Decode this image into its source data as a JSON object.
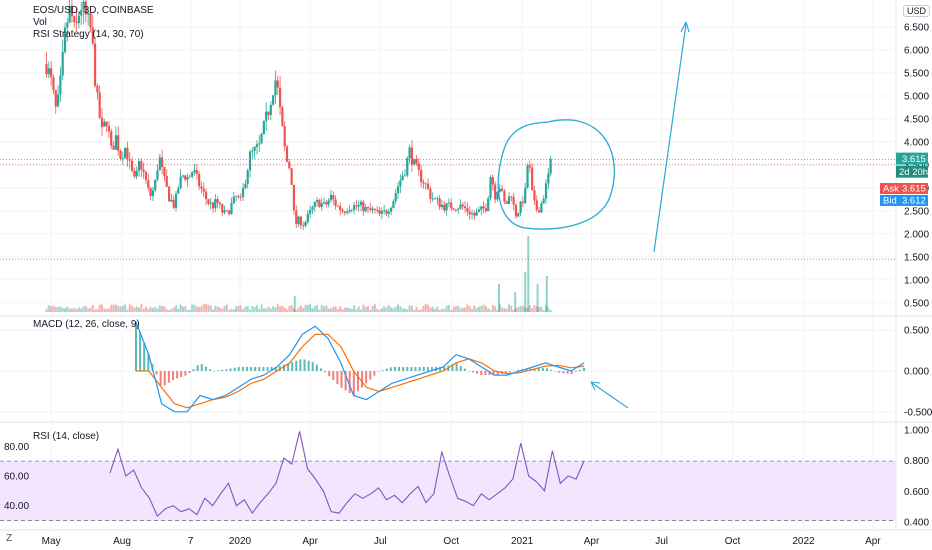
{
  "header": {
    "symbol": "EOS/USD, 3D, COINBASE",
    "vol_label": "Vol",
    "strategy_label": "RSI Strategy (14, 30, 70)",
    "currency_button": "USD"
  },
  "panes": {
    "macd_label": "MACD (12, 26, close, 9)",
    "rsi_label": "RSI (14, close)",
    "z_button": "Z"
  },
  "price_tags": {
    "last": "3.615",
    "countdown": "2d 20h",
    "ask_label": "Ask",
    "ask": "3.615",
    "bid_label": "Bid",
    "bid": "3.612"
  },
  "colors": {
    "up": "#26a69a",
    "down": "#ef5350",
    "macd_line": "#2196f3",
    "signal_line": "#ff6d00",
    "rsi_line": "#7e57c2",
    "annotation": "#29a9d8",
    "rsi_band": "#f3e5fd"
  },
  "chart_data": [
    {
      "type": "candlestick",
      "title": "EOS/USD, 3D, COINBASE",
      "x_ticks": [
        "May",
        "Aug",
        "7",
        "2020",
        "Apr",
        "Jul",
        "Oct",
        "2021",
        "Apr",
        "Jul",
        "Oct",
        "2022",
        "Apr"
      ],
      "y_ticks": [
        "6.500",
        "6.000",
        "5.500",
        "5.000",
        "4.500",
        "4.000",
        "3.500",
        "3.000",
        "2.500",
        "2.000",
        "1.500",
        "1.000",
        "0.500"
      ],
      "ylim": [
        0.3,
        7.0
      ],
      "reference_lines": [
        3.615,
        3.5,
        1.45
      ],
      "close_path": [
        [
          "2019-04-25",
          5.7
        ],
        [
          "2019-05-01",
          5.3
        ],
        [
          "2019-05-08",
          4.6
        ],
        [
          "2019-05-14",
          5.4
        ],
        [
          "2019-05-20",
          6.5
        ],
        [
          "2019-05-26",
          6.9
        ],
        [
          "2019-06-01",
          6.3
        ],
        [
          "2019-06-08",
          7.0
        ],
        [
          "2019-06-15",
          6.7
        ],
        [
          "2019-06-22",
          6.4
        ],
        [
          "2019-06-29",
          5.0
        ],
        [
          "2019-07-06",
          4.2
        ],
        [
          "2019-07-12",
          4.5
        ],
        [
          "2019-07-18",
          3.8
        ],
        [
          "2019-07-24",
          4.1
        ],
        [
          "2019-07-30",
          3.7
        ],
        [
          "2019-08-06",
          3.9
        ],
        [
          "2019-08-12",
          3.4
        ],
        [
          "2019-08-18",
          3.1
        ],
        [
          "2019-08-24",
          3.6
        ],
        [
          "2019-08-31",
          3.2
        ],
        [
          "2019-09-06",
          2.8
        ],
        [
          "2019-09-12",
          3.0
        ],
        [
          "2019-09-18",
          3.7
        ],
        [
          "2019-09-24",
          3.2
        ],
        [
          "2019-10-01",
          2.8
        ],
        [
          "2019-10-08",
          2.6
        ],
        [
          "2019-10-14",
          3.1
        ],
        [
          "2019-10-20",
          3.3
        ],
        [
          "2019-10-26",
          3.2
        ],
        [
          "2019-11-01",
          3.4
        ],
        [
          "2019-11-08",
          3.1
        ],
        [
          "2019-11-14",
          2.9
        ],
        [
          "2019-11-20",
          2.7
        ],
        [
          "2019-11-26",
          2.6
        ],
        [
          "2019-12-02",
          2.7
        ],
        [
          "2019-12-08",
          2.5
        ],
        [
          "2019-12-14",
          2.4
        ],
        [
          "2019-12-20",
          2.6
        ],
        [
          "2019-12-27",
          2.8
        ],
        [
          "2020-01-02",
          2.7
        ],
        [
          "2020-01-08",
          3.2
        ],
        [
          "2020-01-14",
          3.7
        ],
        [
          "2020-01-20",
          3.8
        ],
        [
          "2020-01-26",
          3.9
        ],
        [
          "2020-02-01",
          4.3
        ],
        [
          "2020-02-07",
          4.7
        ],
        [
          "2020-02-13",
          5.2
        ],
        [
          "2020-02-17",
          5.4
        ],
        [
          "2020-02-23",
          4.5
        ],
        [
          "2020-03-01",
          3.6
        ],
        [
          "2020-03-07",
          3.4
        ],
        [
          "2020-03-12",
          2.2
        ],
        [
          "2020-03-18",
          2.3
        ],
        [
          "2020-03-24",
          2.2
        ],
        [
          "2020-03-30",
          2.4
        ],
        [
          "2020-04-06",
          2.6
        ],
        [
          "2020-04-12",
          2.7
        ],
        [
          "2020-04-20",
          2.6
        ],
        [
          "2020-04-28",
          2.8
        ],
        [
          "2020-05-06",
          2.6
        ],
        [
          "2020-05-14",
          2.5
        ],
        [
          "2020-05-22",
          2.6
        ],
        [
          "2020-05-30",
          2.6
        ],
        [
          "2020-06-07",
          2.6
        ],
        [
          "2020-06-15",
          2.5
        ],
        [
          "2020-06-23",
          2.5
        ],
        [
          "2020-07-01",
          2.4
        ],
        [
          "2020-07-09",
          2.5
        ],
        [
          "2020-07-17",
          2.7
        ],
        [
          "2020-07-25",
          3.1
        ],
        [
          "2020-08-02",
          3.4
        ],
        [
          "2020-08-08",
          3.8
        ],
        [
          "2020-08-14",
          3.5
        ],
        [
          "2020-08-20",
          3.3
        ],
        [
          "2020-08-28",
          3.1
        ],
        [
          "2020-09-05",
          2.8
        ],
        [
          "2020-09-13",
          2.7
        ],
        [
          "2020-09-21",
          2.6
        ],
        [
          "2020-09-29",
          2.6
        ],
        [
          "2020-10-07",
          2.6
        ],
        [
          "2020-10-15",
          2.6
        ],
        [
          "2020-10-23",
          2.5
        ],
        [
          "2020-10-31",
          2.4
        ],
        [
          "2020-11-08",
          2.5
        ],
        [
          "2020-11-16",
          2.6
        ],
        [
          "2020-11-22",
          3.4
        ],
        [
          "2020-11-26",
          2.8
        ],
        [
          "2020-12-02",
          3.1
        ],
        [
          "2020-12-10",
          2.6
        ],
        [
          "2020-12-18",
          2.9
        ],
        [
          "2020-12-23",
          2.4
        ],
        [
          "2020-12-30",
          2.6
        ],
        [
          "2021-01-05",
          2.9
        ],
        [
          "2021-01-09",
          3.7
        ],
        [
          "2021-01-15",
          2.7
        ],
        [
          "2021-01-21",
          2.5
        ],
        [
          "2021-01-27",
          2.7
        ],
        [
          "2021-02-02",
          3.1
        ],
        [
          "2021-02-08",
          3.6
        ]
      ],
      "volume_series": [
        {
          "date": "2020-03-12",
          "value": 0.4
        },
        {
          "date": "2020-12-02",
          "value": 0.7
        },
        {
          "date": "2020-12-23",
          "value": 0.5
        },
        {
          "date": "2021-01-05",
          "value": 1.0
        },
        {
          "date": "2021-01-09",
          "value": 1.9
        },
        {
          "date": "2021-01-21",
          "value": 0.7
        },
        {
          "date": "2021-02-02",
          "value": 0.9
        }
      ]
    },
    {
      "type": "line",
      "title": "MACD (12, 26, close, 9)",
      "y_ticks": [
        "0.500",
        "0.000",
        "-0.500"
      ],
      "ylim": [
        -0.6,
        0.65
      ],
      "series": [
        {
          "name": "MACD",
          "values": [
            0.6,
            0.2,
            -0.4,
            -0.5,
            -0.5,
            -0.3,
            -0.35,
            -0.3,
            -0.2,
            -0.1,
            -0.05,
            0.05,
            0.2,
            0.45,
            0.55,
            0.4,
            0.1,
            -0.3,
            -0.35,
            -0.25,
            -0.15,
            -0.1,
            -0.05,
            0.0,
            0.05,
            0.2,
            0.15,
            0.05,
            -0.05,
            -0.05,
            0.0,
            0.05,
            0.1,
            0.05,
            0.0,
            0.1
          ]
        },
        {
          "name": "Signal",
          "values": [
            0.0,
            0.0,
            -0.2,
            -0.4,
            -0.45,
            -0.4,
            -0.35,
            -0.32,
            -0.25,
            -0.15,
            -0.1,
            0.0,
            0.1,
            0.3,
            0.45,
            0.45,
            0.3,
            0.0,
            -0.2,
            -0.25,
            -0.2,
            -0.15,
            -0.1,
            -0.05,
            0.0,
            0.1,
            0.15,
            0.1,
            0.0,
            -0.03,
            -0.02,
            0.02,
            0.06,
            0.07,
            0.04,
            0.06
          ]
        }
      ]
    },
    {
      "type": "line",
      "title": "RSI (14, close)",
      "y_ticks": [
        "80.00",
        "60.00",
        "40.00"
      ],
      "right_ticks": [
        "1.000",
        "0.800",
        "0.600",
        "0.400"
      ],
      "ylim": [
        25,
        95
      ],
      "bands": [
        70,
        30
      ],
      "series": [
        {
          "name": "RSI",
          "values": [
            62,
            78,
            60,
            64,
            52,
            45,
            33,
            38,
            40,
            36,
            38,
            34,
            45,
            40,
            48,
            55,
            40,
            44,
            35,
            42,
            48,
            55,
            72,
            68,
            90,
            65,
            58,
            50,
            36,
            35,
            42,
            48,
            45,
            48,
            52,
            44,
            47,
            42,
            48,
            53,
            42,
            48,
            76,
            60,
            45,
            43,
            40,
            48,
            44,
            48,
            52,
            58,
            82,
            60,
            56,
            50,
            77,
            55,
            60,
            58,
            70
          ]
        }
      ]
    }
  ]
}
